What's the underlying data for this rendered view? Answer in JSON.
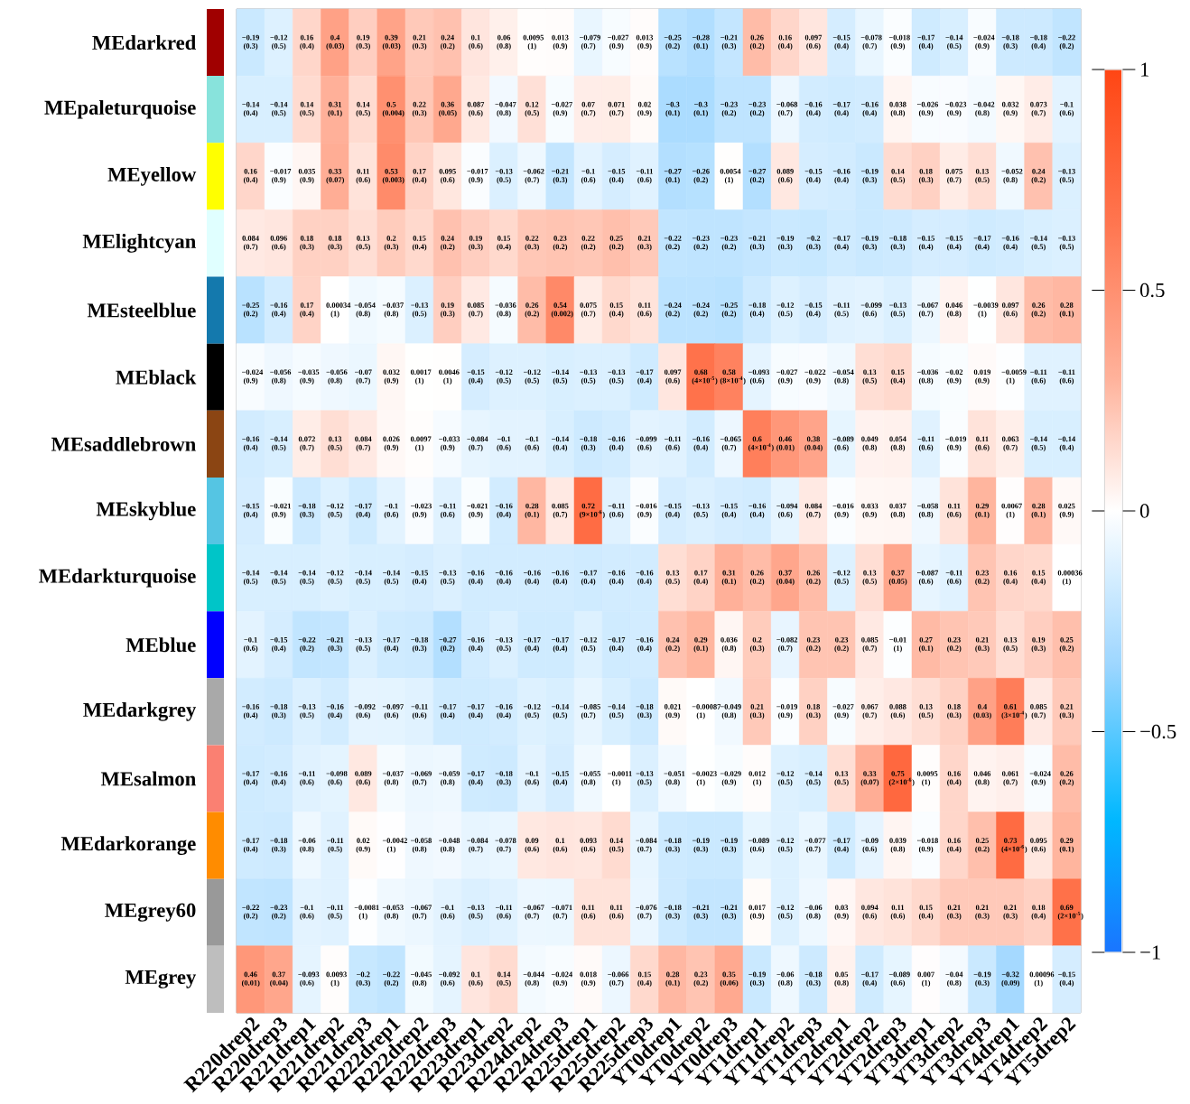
{
  "chart_data": {
    "type": "heatmap",
    "categories": [
      "R220drep2",
      "R220drep3",
      "R221drep1",
      "R221drep2",
      "R221drep3",
      "R222drep1",
      "R222drep2",
      "R222drep3",
      "R223drep1",
      "R223drep2",
      "R224drep2",
      "R224drep3",
      "R225drep1",
      "R225drep2",
      "R225drep3",
      "YT0drep1",
      "YT0drep2",
      "YT0drep3",
      "YT1drep1",
      "YT1drep2",
      "YT1drep3",
      "YT2drep1",
      "YT2drep2",
      "YT2drep3",
      "YT3drep1",
      "YT3drep2",
      "YT3drep3",
      "YT4drep1",
      "YT4drep2",
      "YT5drep2"
    ],
    "y_categories": [
      "MEdarkred",
      "MEpaleturquoise",
      "MEyellow",
      "MElightcyan",
      "MEsteelblue",
      "MEblack",
      "MEsaddlebrown",
      "MEskyblue",
      "MEdarkturquoise",
      "MEblue",
      "MEdarkgrey",
      "MEsalmon",
      "MEdarkorange",
      "MEgrey60",
      "MEgrey"
    ],
    "cells": [
      [
        -0.19,
        -0.12,
        0.16,
        0.4,
        0.19,
        0.39,
        0.21,
        0.24,
        0.1,
        0.06,
        0.0095,
        0.013,
        -0.079,
        -0.027,
        0.013,
        -0.25,
        -0.28,
        -0.21,
        0.26,
        0.16,
        0.097,
        -0.15,
        -0.078,
        -0.018,
        -0.17,
        -0.14,
        -0.024,
        -0.18,
        -0.18,
        -0.22
      ],
      [
        -0.14,
        -0.14,
        0.14,
        0.31,
        0.14,
        0.5,
        0.22,
        0.36,
        0.087,
        -0.047,
        0.12,
        -0.027,
        0.07,
        0.071,
        0.02,
        -0.3,
        -0.3,
        -0.23,
        -0.23,
        -0.068,
        -0.16,
        -0.17,
        -0.16,
        0.038,
        -0.026,
        -0.023,
        -0.042,
        0.032,
        0.073,
        -0.1
      ],
      [
        0.16,
        -0.017,
        0.035,
        0.33,
        0.11,
        0.53,
        0.17,
        0.095,
        -0.017,
        -0.13,
        -0.062,
        -0.21,
        -0.1,
        -0.15,
        -0.11,
        -0.27,
        -0.26,
        0.0054,
        -0.27,
        0.089,
        -0.15,
        -0.16,
        -0.19,
        0.14,
        0.18,
        0.075,
        0.13,
        -0.052,
        0.24,
        -0.13
      ],
      [
        0.084,
        0.096,
        0.18,
        0.18,
        0.13,
        0.2,
        0.15,
        0.24,
        0.19,
        0.15,
        0.22,
        0.23,
        0.22,
        0.25,
        0.21,
        -0.22,
        -0.23,
        -0.23,
        -0.21,
        -0.19,
        -0.2,
        -0.17,
        -0.19,
        -0.18,
        -0.15,
        -0.15,
        -0.17,
        -0.16,
        -0.14,
        -0.13
      ],
      [
        -0.25,
        -0.16,
        0.17,
        0.00034,
        -0.054,
        -0.037,
        -0.13,
        0.19,
        0.085,
        -0.036,
        0.26,
        0.54,
        0.075,
        0.15,
        0.11,
        -0.24,
        -0.24,
        -0.25,
        -0.18,
        -0.12,
        -0.15,
        -0.11,
        -0.099,
        -0.13,
        -0.067,
        0.046,
        -0.0039,
        0.097,
        0.26,
        0.28
      ],
      [
        -0.024,
        -0.056,
        -0.035,
        -0.056,
        -0.07,
        0.032,
        0.0017,
        0.0046,
        -0.15,
        -0.12,
        -0.12,
        -0.14,
        -0.13,
        -0.13,
        -0.17,
        0.097,
        0.68,
        0.58,
        -0.093,
        -0.027,
        -0.022,
        -0.054,
        0.13,
        0.15,
        -0.036,
        -0.02,
        0.019,
        -0.0059,
        -0.11,
        -0.11
      ],
      [
        -0.16,
        -0.14,
        0.072,
        0.13,
        0.084,
        0.026,
        0.0097,
        -0.033,
        -0.084,
        -0.1,
        -0.1,
        -0.14,
        -0.18,
        -0.16,
        -0.099,
        -0.11,
        -0.16,
        -0.065,
        0.6,
        0.46,
        0.38,
        -0.089,
        0.049,
        0.054,
        -0.11,
        -0.019,
        0.11,
        0.063,
        -0.14,
        -0.14
      ],
      [
        -0.15,
        -0.021,
        -0.18,
        -0.12,
        -0.17,
        -0.1,
        -0.023,
        -0.11,
        -0.021,
        -0.16,
        0.28,
        0.085,
        0.72,
        -0.11,
        -0.016,
        -0.15,
        -0.13,
        -0.15,
        -0.16,
        -0.094,
        0.084,
        -0.016,
        0.033,
        0.037,
        -0.058,
        0.11,
        0.29,
        0.0067,
        0.28,
        0.025
      ],
      [
        -0.14,
        -0.14,
        -0.14,
        -0.12,
        -0.14,
        -0.14,
        -0.15,
        -0.13,
        -0.16,
        -0.16,
        -0.16,
        -0.16,
        -0.17,
        -0.16,
        -0.16,
        0.13,
        0.17,
        0.31,
        0.26,
        0.37,
        0.26,
        -0.12,
        0.13,
        0.37,
        -0.087,
        -0.11,
        0.23,
        0.16,
        0.15,
        0.00036
      ],
      [
        -0.1,
        -0.15,
        -0.22,
        -0.21,
        -0.13,
        -0.17,
        -0.18,
        -0.27,
        -0.16,
        -0.13,
        -0.17,
        -0.17,
        -0.12,
        -0.17,
        -0.16,
        0.24,
        0.29,
        0.036,
        0.2,
        -0.082,
        0.23,
        0.23,
        0.085,
        -0.01,
        0.27,
        0.23,
        0.21,
        0.13,
        0.19,
        0.25
      ],
      [
        -0.16,
        -0.18,
        -0.13,
        -0.16,
        -0.092,
        -0.097,
        -0.11,
        -0.17,
        -0.17,
        -0.16,
        -0.12,
        -0.14,
        -0.085,
        -0.14,
        -0.18,
        0.021,
        -0.00087,
        -0.049,
        0.21,
        -0.019,
        0.18,
        -0.027,
        0.067,
        0.088,
        0.13,
        0.18,
        0.4,
        0.61,
        0.085,
        0.21
      ],
      [
        -0.17,
        -0.16,
        -0.11,
        -0.098,
        0.089,
        -0.037,
        -0.069,
        -0.059,
        -0.17,
        -0.18,
        -0.1,
        -0.15,
        -0.055,
        -0.0011,
        -0.13,
        -0.051,
        -0.0023,
        -0.029,
        0.012,
        -0.12,
        -0.14,
        0.13,
        0.33,
        0.75,
        0.0095,
        0.16,
        0.046,
        0.061,
        -0.024,
        0.26
      ],
      [
        -0.17,
        -0.18,
        -0.06,
        -0.11,
        0.02,
        -0.0042,
        -0.058,
        -0.048,
        -0.084,
        -0.078,
        0.09,
        0.1,
        0.093,
        0.14,
        -0.084,
        -0.18,
        -0.19,
        -0.19,
        -0.089,
        -0.12,
        -0.077,
        -0.17,
        -0.09,
        0.039,
        -0.018,
        0.16,
        0.25,
        0.73,
        0.095,
        0.29
      ],
      [
        -0.22,
        -0.23,
        -0.1,
        -0.11,
        -0.0081,
        -0.053,
        -0.067,
        -0.1,
        -0.13,
        -0.11,
        -0.067,
        -0.071,
        0.11,
        0.11,
        -0.076,
        -0.18,
        -0.21,
        -0.21,
        0.017,
        -0.12,
        -0.06,
        0.03,
        0.094,
        0.11,
        0.15,
        0.21,
        0.21,
        0.21,
        0.18,
        0.69
      ],
      [
        0.46,
        0.37,
        -0.093,
        0.0093,
        -0.2,
        -0.22,
        -0.045,
        -0.092,
        0.1,
        0.14,
        -0.044,
        -0.024,
        0.018,
        -0.066,
        0.15,
        0.28,
        0.23,
        0.35,
        -0.19,
        -0.06,
        -0.18,
        0.05,
        -0.17,
        -0.089,
        0.007,
        -0.04,
        -0.19,
        -0.32,
        0.00096,
        -0.15
      ]
    ],
    "cell_labels": [
      [
        "−0.19 (0.3)",
        "−0.12 (0.5)",
        "0.16 (0.4)",
        "0.4 (0.03)",
        "0.19 (0.3)",
        "0.39 (0.03)",
        "0.21 (0.3)",
        "0.24 (0.2)",
        "0.1 (0.6)",
        "0.06 (0.8)",
        "0.0095 (1)",
        "0.013 (0.9)",
        "−0.079 (0.7)",
        "−0.027 (0.9)",
        "0.013 (0.9)",
        "−0.25 (0.2)",
        "−0.28 (0.1)",
        "−0.21 (0.3)",
        "0.26 (0.2)",
        "0.16 (0.4)",
        "0.097 (0.6)",
        "−0.15 (0.4)",
        "−0.078 (0.7)",
        "−0.018 (0.9)",
        "−0.17 (0.4)",
        "−0.14 (0.5)",
        "−0.024 (0.9)",
        "−0.18 (0.3)",
        "−0.18 (0.4)",
        "−0.22 (0.2)"
      ],
      [
        "−0.14 (0.4)",
        "−0.14 (0.5)",
        "0.14 (0.5)",
        "0.31 (0.1)",
        "0.14 (0.5)",
        "0.5 (0.004)",
        "0.22 (0.3)",
        "0.36 (0.05)",
        "0.087 (0.6)",
        "−0.047 (0.8)",
        "0.12 (0.5)",
        "−0.027 (0.9)",
        "0.07 (0.7)",
        "0.071 (0.7)",
        "0.02 (0.9)",
        "−0.3 (0.1)",
        "−0.3 (0.1)",
        "−0.23 (0.2)",
        "−0.23 (0.2)",
        "−0.068 (0.7)",
        "−0.16 (0.4)",
        "−0.17 (0.4)",
        "−0.16 (0.4)",
        "0.038 (0.8)",
        "−0.026 (0.9)",
        "−0.023 (0.9)",
        "−0.042 (0.8)",
        "0.032 (0.9)",
        "0.073 (0.7)",
        "−0.1 (0.6)"
      ],
      [
        "0.16 (0.4)",
        "−0.017 (0.9)",
        "0.035 (0.9)",
        "0.33 (0.07)",
        "0.11 (0.6)",
        "0.53 (0.003)",
        "0.17 (0.4)",
        "0.095 (0.6)",
        "−0.017 (0.9)",
        "−0.13 (0.5)",
        "−0.062 (0.7)",
        "−0.21 (0.3)",
        "−0.1 (0.6)",
        "−0.15 (0.4)",
        "−0.11 (0.6)",
        "−0.27 (0.1)",
        "−0.26 (0.2)",
        "0.0054 (1)",
        "−0.27 (0.2)",
        "0.089 (0.6)",
        "−0.15 (0.4)",
        "−0.16 (0.4)",
        "−0.19 (0.3)",
        "0.14 (0.5)",
        "0.18 (0.3)",
        "0.075 (0.7)",
        "0.13 (0.5)",
        "−0.052 (0.8)",
        "0.24 (0.2)",
        "−0.13 (0.5)"
      ],
      [
        "0.084 (0.7)",
        "0.096 (0.6)",
        "0.18 (0.3)",
        "0.18 (0.3)",
        "0.13 (0.5)",
        "0.2 (0.3)",
        "0.15 (0.4)",
        "0.24 (0.2)",
        "0.19 (0.3)",
        "0.15 (0.4)",
        "0.22 (0.3)",
        "0.23 (0.2)",
        "0.22 (0.2)",
        "0.25 (0.2)",
        "0.21 (0.3)",
        "−0.22 (0.2)",
        "−0.23 (0.2)",
        "−0.23 (0.2)",
        "−0.21 (0.3)",
        "−0.19 (0.3)",
        "−0.2 (0.3)",
        "−0.17 (0.4)",
        "−0.19 (0.3)",
        "−0.18 (0.3)",
        "−0.15 (0.4)",
        "−0.15 (0.4)",
        "−0.17 (0.4)",
        "−0.16 (0.4)",
        "−0.14 (0.5)",
        "−0.13 (0.5)"
      ],
      [
        "−0.25 (0.2)",
        "−0.16 (0.4)",
        "0.17 (0.4)",
        "0.00034 (1)",
        "−0.054 (0.8)",
        "−0.037 (0.8)",
        "−0.13 (0.5)",
        "0.19 (0.3)",
        "0.085 (0.7)",
        "−0.036 (0.8)",
        "0.26 (0.2)",
        "0.54 (0.002)",
        "0.075 (0.7)",
        "0.15 (0.4)",
        "0.11 (0.6)",
        "−0.24 (0.2)",
        "−0.24 (0.2)",
        "−0.25 (0.2)",
        "−0.18 (0.4)",
        "−0.12 (0.5)",
        "−0.15 (0.4)",
        "−0.11 (0.5)",
        "−0.099 (0.6)",
        "−0.13 (0.5)",
        "−0.067 (0.7)",
        "0.046 (0.8)",
        "−0.0039 (1)",
        "0.097 (0.6)",
        "0.26 (0.2)",
        "0.28 (0.1)"
      ],
      [
        "−0.024 (0.9)",
        "−0.056 (0.8)",
        "−0.035 (0.9)",
        "−0.056 (0.8)",
        "−0.07 (0.7)",
        "0.032 (0.9)",
        "0.0017 (1)",
        "0.0046 (1)",
        "−0.15 (0.4)",
        "−0.12 (0.5)",
        "−0.12 (0.5)",
        "−0.14 (0.5)",
        "−0.13 (0.5)",
        "−0.13 (0.5)",
        "−0.17 (0.4)",
        "0.097 (0.6)",
        "0.68 (4×10$^{-5}$)",
        "0.58 (8×10$^{-4}$)",
        "−0.093 (0.6)",
        "−0.027 (0.9)",
        "−0.022 (0.9)",
        "−0.054 (0.8)",
        "0.13 (0.5)",
        "0.15 (0.4)",
        "−0.036 (0.8)",
        "−0.02 (0.9)",
        "0.019 (0.9)",
        "−0.0059 (1)",
        "−0.11 (0.6)",
        "−0.11 (0.6)"
      ],
      [
        "−0.16 (0.4)",
        "−0.14 (0.5)",
        "0.072 (0.7)",
        "0.13 (0.5)",
        "0.084 (0.7)",
        "0.026 (0.9)",
        "0.0097 (1)",
        "−0.033 (0.9)",
        "−0.084 (0.7)",
        "−0.1 (0.6)",
        "−0.1 (0.6)",
        "−0.14 (0.4)",
        "−0.18 (0.3)",
        "−0.16 (0.4)",
        "−0.099 (0.6)",
        "−0.11 (0.6)",
        "−0.16 (0.4)",
        "−0.065 (0.7)",
        "0.6 (4×10$^{-4}$)",
        "0.46 (0.01)",
        "0.38 (0.04)",
        "−0.089 (0.6)",
        "0.049 (0.8)",
        "0.054 (0.8)",
        "−0.11 (0.6)",
        "−0.019 (0.9)",
        "0.11 (0.6)",
        "0.063 (0.7)",
        "−0.14 (0.5)",
        "−0.14 (0.4)"
      ],
      [
        "−0.15 (0.4)",
        "−0.021 (0.9)",
        "−0.18 (0.3)",
        "−0.12 (0.5)",
        "−0.17 (0.4)",
        "−0.1 (0.6)",
        "−0.023 (0.9)",
        "−0.11 (0.6)",
        "−0.021 (0.9)",
        "−0.16 (0.4)",
        "0.28 (0.1)",
        "0.085 (0.7)",
        "0.72 (9×10$^{-6}$)",
        "−0.11 (0.6)",
        "−0.016 (0.9)",
        "−0.15 (0.4)",
        "−0.13 (0.5)",
        "−0.15 (0.4)",
        "−0.16 (0.4)",
        "−0.094 (0.6)",
        "0.084 (0.7)",
        "−0.016 (0.9)",
        "0.033 (0.9)",
        "0.037 (0.8)",
        "−0.058 (0.8)",
        "0.11 (0.6)",
        "0.29 (0.1)",
        "0.0067 (1)",
        "0.28 (0.1)",
        "0.025 (0.9)"
      ],
      [
        "−0.14 (0.5)",
        "−0.14 (0.5)",
        "−0.14 (0.5)",
        "−0.12 (0.5)",
        "−0.14 (0.5)",
        "−0.14 (0.5)",
        "−0.15 (0.4)",
        "−0.13 (0.5)",
        "−0.16 (0.4)",
        "−0.16 (0.4)",
        "−0.16 (0.4)",
        "−0.16 (0.4)",
        "−0.17 (0.4)",
        "−0.16 (0.4)",
        "−0.16 (0.4)",
        "0.13 (0.5)",
        "0.17 (0.4)",
        "0.31 (0.1)",
        "0.26 (0.2)",
        "0.37 (0.04)",
        "0.26 (0.2)",
        "−0.12 (0.5)",
        "0.13 (0.5)",
        "0.37 (0.05)",
        "−0.087 (0.6)",
        "−0.11 (0.6)",
        "0.23 (0.2)",
        "0.16 (0.4)",
        "0.15 (0.4)",
        "0.00036 (1)"
      ],
      [
        "−0.1 (0.6)",
        "−0.15 (0.4)",
        "−0.22 (0.2)",
        "−0.21 (0.3)",
        "−0.13 (0.5)",
        "−0.17 (0.4)",
        "−0.18 (0.3)",
        "−0.27 (0.2)",
        "−0.16 (0.4)",
        "−0.13 (0.5)",
        "−0.17 (0.4)",
        "−0.17 (0.4)",
        "−0.12 (0.5)",
        "−0.17 (0.4)",
        "−0.16 (0.4)",
        "0.24 (0.2)",
        "0.29 (0.1)",
        "0.036 (0.8)",
        "0.2 (0.3)",
        "−0.082 (0.7)",
        "0.23 (0.2)",
        "0.23 (0.2)",
        "0.085 (0.7)",
        "−0.01 (1)",
        "0.27 (0.1)",
        "0.23 (0.2)",
        "0.21 (0.3)",
        "0.13 (0.5)",
        "0.19 (0.3)",
        "0.25 (0.2)"
      ],
      [
        "−0.16 (0.4)",
        "−0.18 (0.3)",
        "−0.13 (0.5)",
        "−0.16 (0.4)",
        "−0.092 (0.6)",
        "−0.097 (0.6)",
        "−0.11 (0.6)",
        "−0.17 (0.4)",
        "−0.17 (0.4)",
        "−0.16 (0.4)",
        "−0.12 (0.5)",
        "−0.14 (0.5)",
        "−0.085 (0.7)",
        "−0.14 (0.5)",
        "−0.18 (0.3)",
        "0.021 (0.9)",
        "−0.00087 (1)",
        "−0.049 (0.8)",
        "0.21 (0.3)",
        "−0.019 (0.9)",
        "0.18 (0.3)",
        "−0.027 (0.9)",
        "0.067 (0.7)",
        "0.088 (0.6)",
        "0.13 (0.5)",
        "0.18 (0.3)",
        "0.4 (0.03)",
        "0.61 (3×10$^{-4}$)",
        "0.085 (0.7)",
        "0.21 (0.3)"
      ],
      [
        "−0.17 (0.4)",
        "−0.16 (0.4)",
        "−0.11 (0.6)",
        "−0.098 (0.6)",
        "0.089 (0.6)",
        "−0.037 (0.8)",
        "−0.069 (0.7)",
        "−0.059 (0.8)",
        "−0.17 (0.4)",
        "−0.18 (0.3)",
        "−0.1 (0.6)",
        "−0.15 (0.4)",
        "−0.055 (0.8)",
        "−0.0011 (1)",
        "−0.13 (0.5)",
        "−0.051 (0.8)",
        "−0.0023 (1)",
        "−0.029 (0.9)",
        "0.012 (1)",
        "−0.12 (0.5)",
        "−0.14 (0.5)",
        "0.13 (0.5)",
        "0.33 (0.07)",
        "0.75 (2×10$^{-6}$)",
        "0.0095 (1)",
        "0.16 (0.4)",
        "0.046 (0.8)",
        "0.061 (0.7)",
        "−0.024 (0.9)",
        "0.26 (0.2)"
      ],
      [
        "−0.17 (0.4)",
        "−0.18 (0.3)",
        "−0.06 (0.8)",
        "−0.11 (0.5)",
        "0.02 (0.9)",
        "−0.0042 (1)",
        "−0.058 (0.8)",
        "−0.048 (0.8)",
        "−0.084 (0.7)",
        "−0.078 (0.7)",
        "0.09 (0.6)",
        "0.1 (0.6)",
        "0.093 (0.6)",
        "0.14 (0.5)",
        "−0.084 (0.7)",
        "−0.18 (0.3)",
        "−0.19 (0.3)",
        "−0.19 (0.3)",
        "−0.089 (0.6)",
        "−0.12 (0.5)",
        "−0.077 (0.7)",
        "−0.17 (0.4)",
        "−0.09 (0.6)",
        "0.039 (0.8)",
        "−0.018 (0.9)",
        "0.16 (0.4)",
        "0.25 (0.2)",
        "0.73 (4×10$^{-6}$)",
        "0.095 (0.6)",
        "0.29 (0.1)"
      ],
      [
        "−0.22 (0.2)",
        "−0.23 (0.2)",
        "−0.1 (0.6)",
        "−0.11 (0.5)",
        "−0.0081 (1)",
        "−0.053 (0.8)",
        "−0.067 (0.7)",
        "−0.1 (0.6)",
        "−0.13 (0.5)",
        "−0.11 (0.6)",
        "−0.067 (0.7)",
        "−0.071 (0.7)",
        "0.11 (0.6)",
        "0.11 (0.6)",
        "−0.076 (0.7)",
        "−0.18 (0.3)",
        "−0.21 (0.3)",
        "−0.21 (0.3)",
        "0.017 (0.9)",
        "−0.12 (0.5)",
        "−0.06 (0.8)",
        "0.03 (0.9)",
        "0.094 (0.6)",
        "0.11 (0.6)",
        "0.15 (0.4)",
        "0.21 (0.3)",
        "0.21 (0.3)",
        "0.21 (0.3)",
        "0.18 (0.4)",
        "0.69 (2×10$^{-5}$)"
      ],
      [
        "0.46 (0.01)",
        "0.37 (0.04)",
        "−0.093 (0.6)",
        "0.0093 (1)",
        "−0.2 (0.3)",
        "−0.22 (0.2)",
        "−0.045 (0.8)",
        "−0.092 (0.6)",
        "0.1 (0.6)",
        "0.14 (0.5)",
        "−0.044 (0.8)",
        "−0.024 (0.9)",
        "0.018 (0.9)",
        "−0.066 (0.7)",
        "0.15 (0.4)",
        "0.28 (0.1)",
        "0.23 (0.2)",
        "0.35 (0.06)",
        "−0.19 (0.3)",
        "−0.06 (0.8)",
        "−0.18 (0.3)",
        "0.05 (0.8)",
        "−0.17 (0.4)",
        "−0.089 (0.6)",
        "0.007 (1)",
        "−0.04 (0.8)",
        "−0.19 (0.3)",
        "−0.32 (0.09)",
        "0.00096 (1)",
        "−0.15 (0.4)"
      ]
    ],
    "clim": [
      -1,
      1
    ],
    "cticks": [
      {
        "value": -1,
        "label": "−1"
      },
      {
        "value": -0.5,
        "label": "−0.5"
      },
      0,
      0.5,
      1
    ]
  }
}
